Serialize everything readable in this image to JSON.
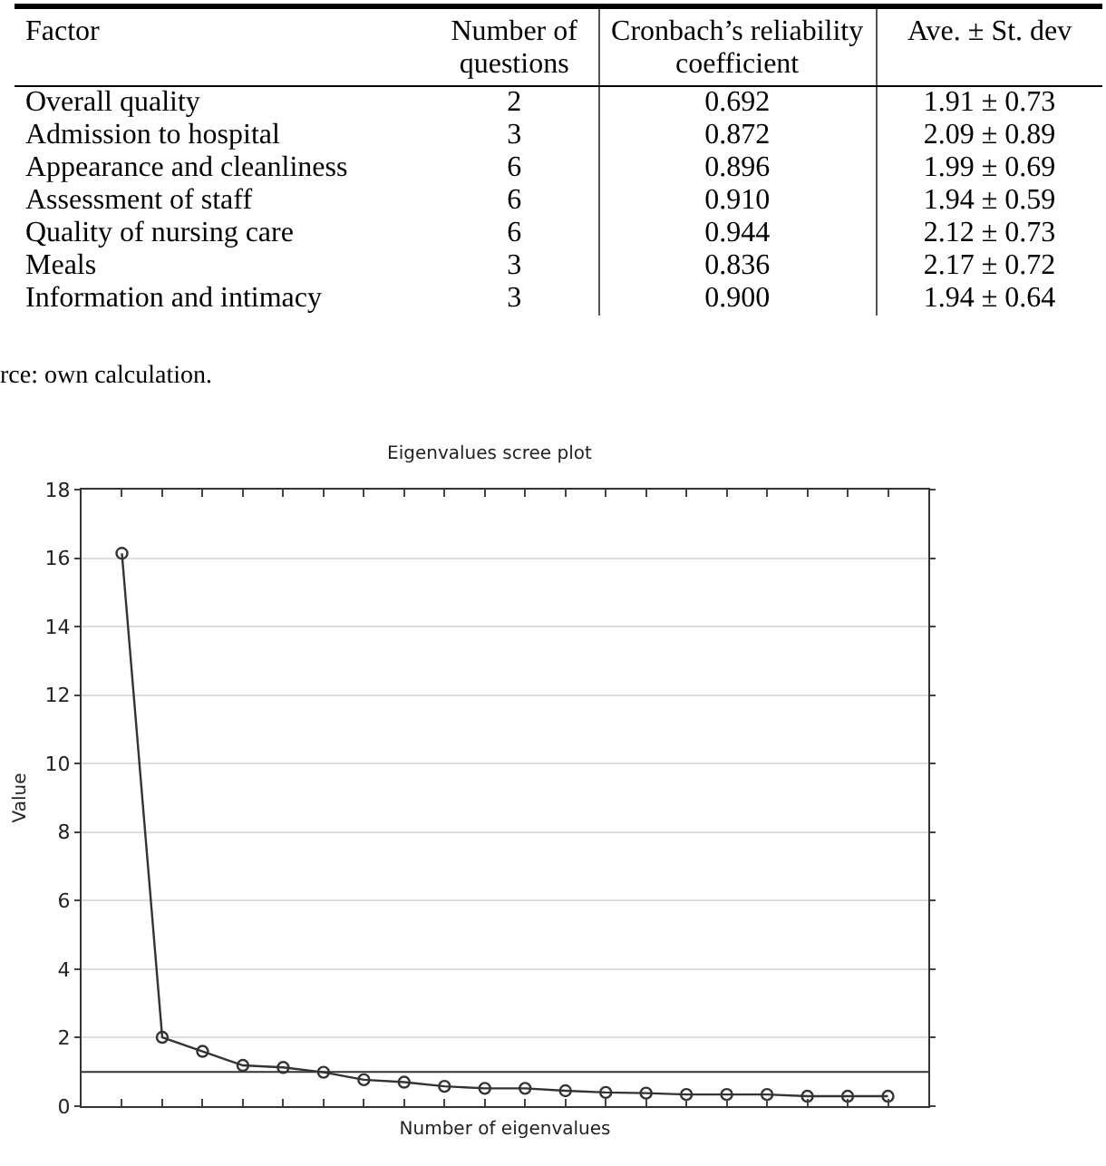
{
  "chart_data": [
    {
      "type": "other",
      "annotations": [
        "Factor",
        "Number of questions",
        "Cronbach’s reliability coefficient",
        "Ave. ± St. dev",
        "Overall quality",
        "2",
        "0.692",
        "1.91 ± 0.73",
        "Admission to hospital",
        "3",
        "0.872",
        "2.09 ± 0.89",
        "Appearance and cleanliness",
        "6",
        "0.896",
        "1.99 ± 0.69",
        "Assessment of staff",
        "6",
        "0.910",
        "1.94 ± 0.59",
        "Quality of nursing care",
        "6",
        "0.944",
        "2.12 ± 0.73",
        "Meals",
        "3",
        "0.836",
        "2.17 ± 0.72",
        "Information and intimacy",
        "3",
        "0.900",
        "1.94 ± 0.64",
        "rce: own calculation."
      ]
    },
    {
      "type": "line",
      "title": "Eigenvalues scree plot",
      "xlabel": "Number of eigenvalues",
      "ylabel": "Value",
      "categories": [
        null,
        null,
        null,
        null,
        null,
        null,
        null,
        null,
        null,
        null,
        null,
        null,
        null,
        null,
        null,
        null,
        null,
        null,
        null,
        null
      ],
      "series": [
        {
          "color": "#333333",
          "values": [
            16.14,
            2.01,
            1.6,
            1.19,
            1.13,
            0.99,
            0.77,
            0.7,
            0.58,
            0.52,
            0.52,
            0.45,
            0.4,
            0.38,
            0.34,
            0.34,
            0.34,
            0.29,
            0.29,
            0.29
          ]
        }
      ],
      "ylim": [
        0,
        18
      ],
      "yticks": [
        0,
        2,
        4,
        6,
        8,
        10,
        12,
        14,
        16,
        18
      ],
      "grid": "y",
      "marker": "circle",
      "line_style": "solid",
      "ref_lines": [
        {
          "axis": "y",
          "value": 1,
          "color": "#333333"
        }
      ]
    }
  ]
}
